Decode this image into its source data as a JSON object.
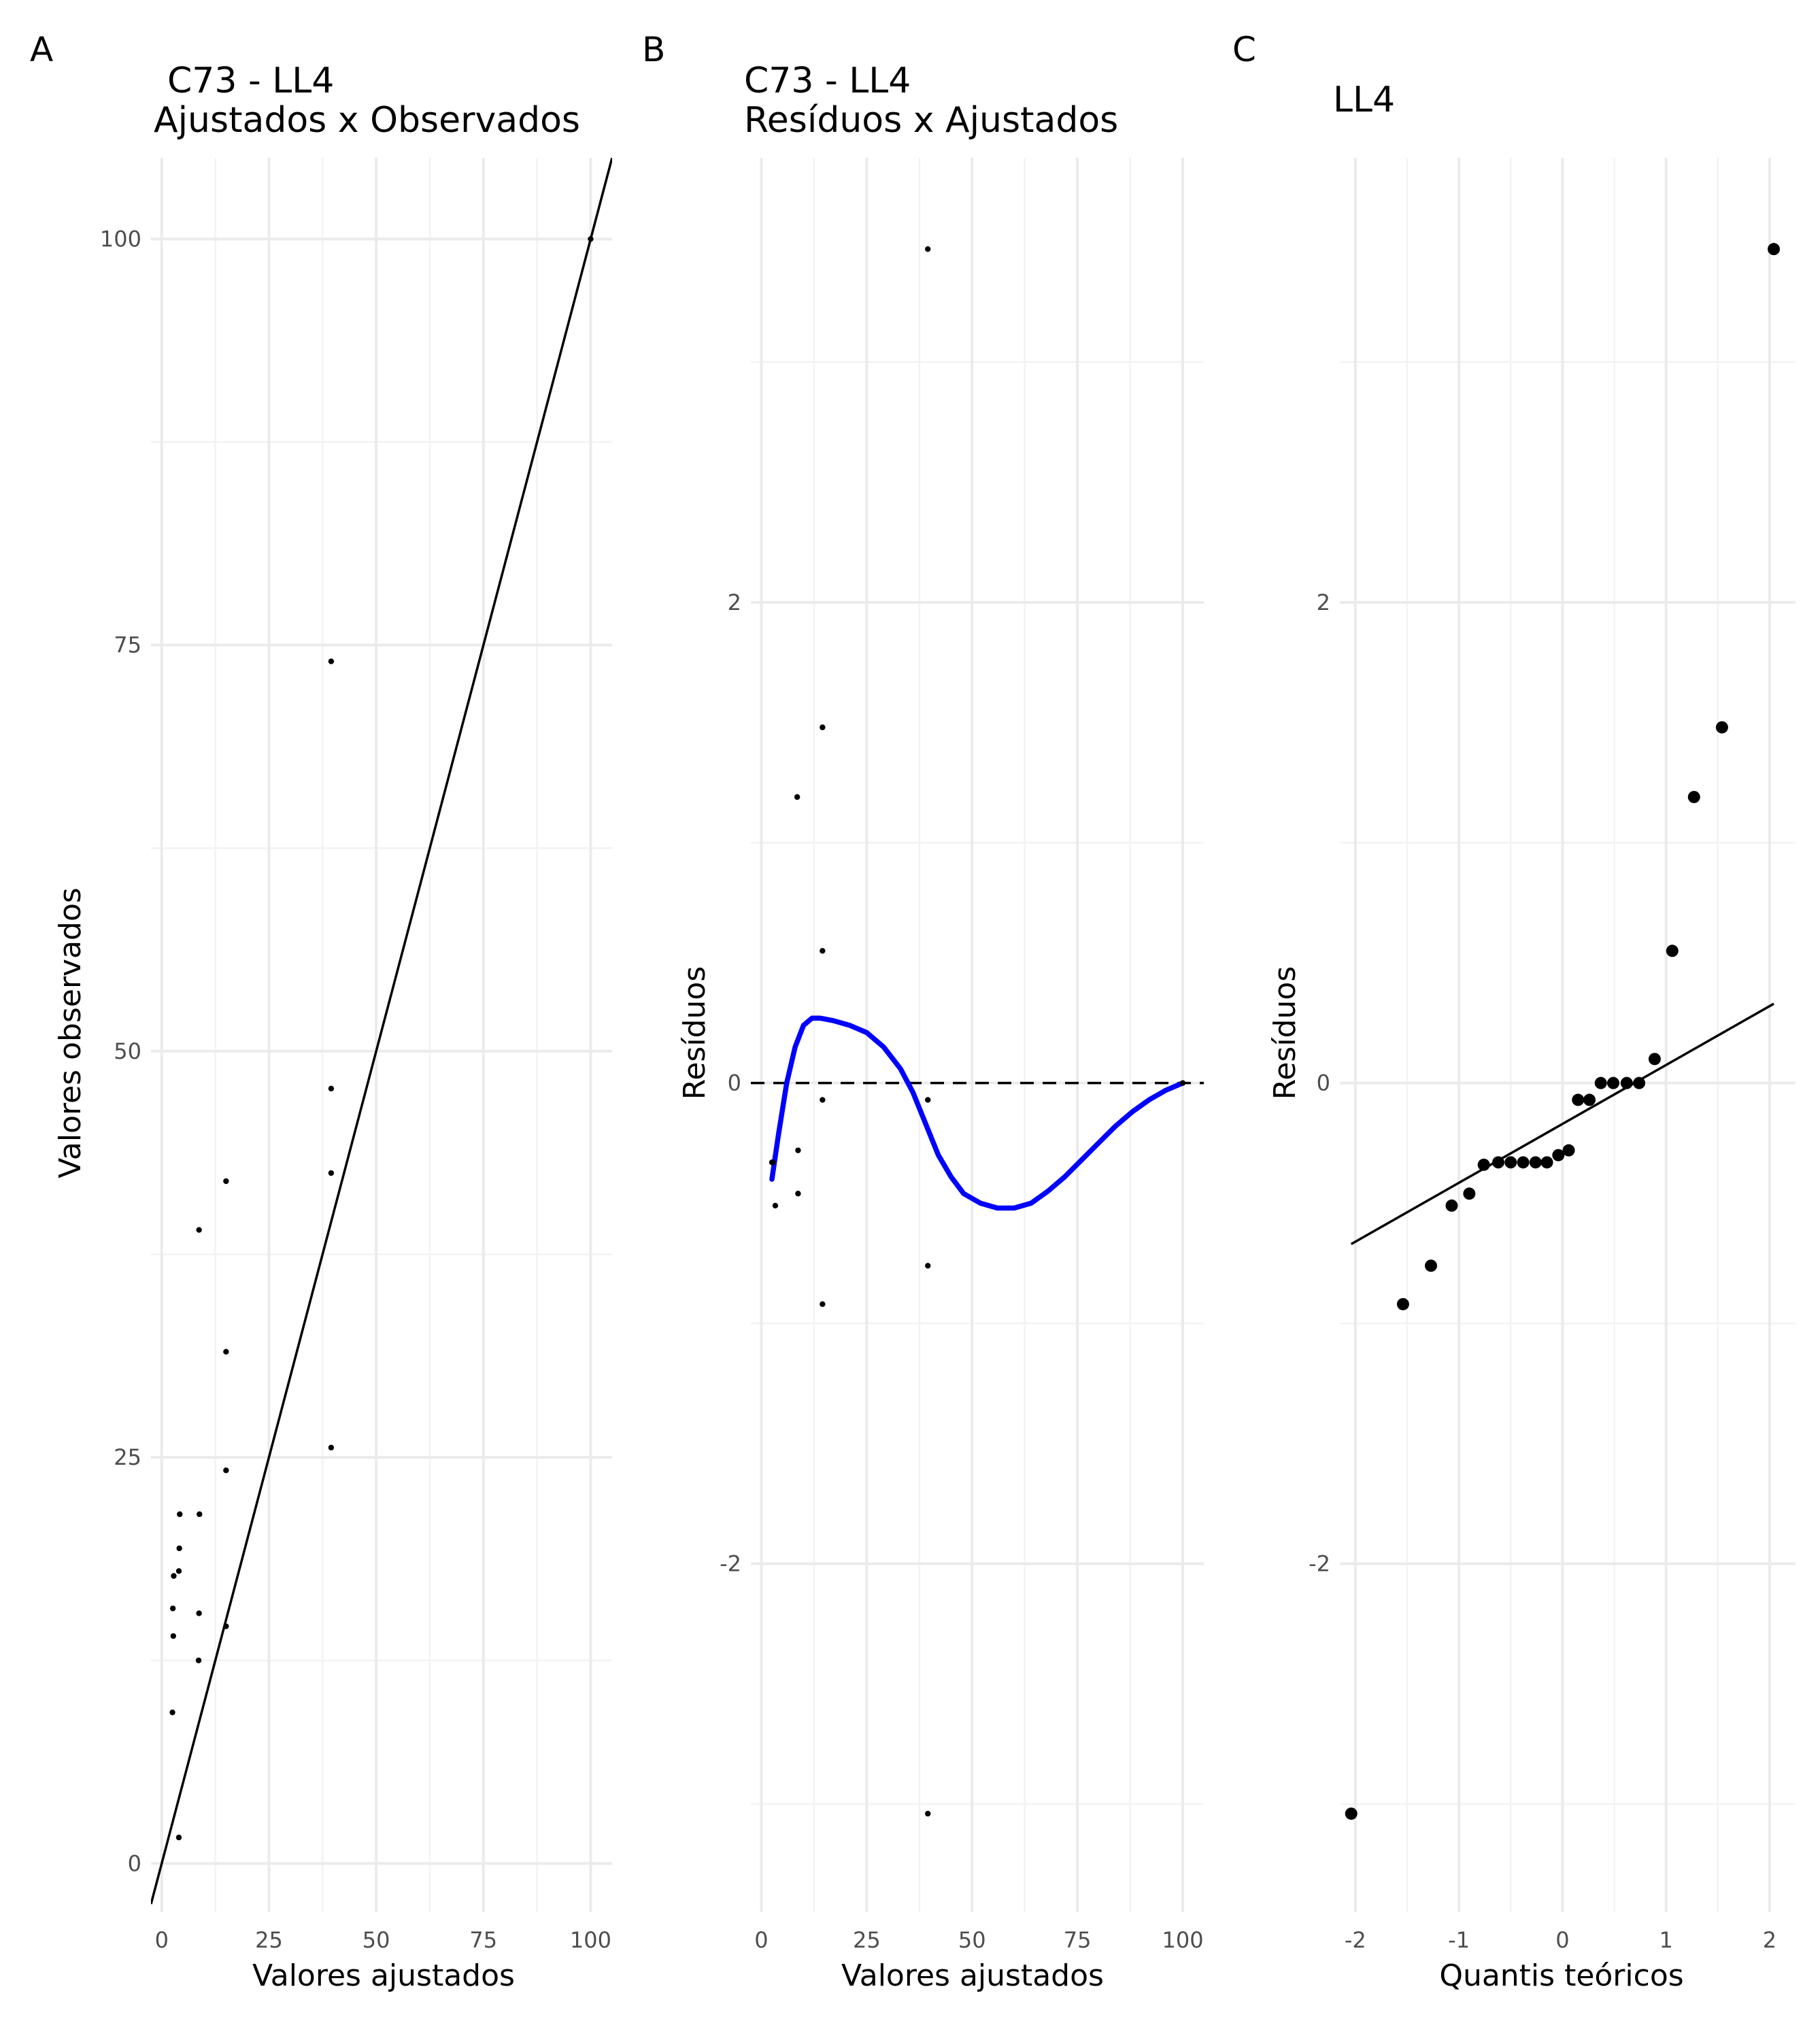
{
  "chart_data": [
    {
      "panel": "A",
      "type": "scatter",
      "title_lines": [
        "C73 - LL4",
        "Ajustados x Observados"
      ],
      "xlabel": "Valores ajustados",
      "ylabel": "Valores observados",
      "xlim": [
        -2.5,
        105
      ],
      "ylim": [
        -3,
        105
      ],
      "xticks": [
        0,
        25,
        50,
        75,
        100
      ],
      "yticks": [
        0,
        25,
        50,
        75,
        100
      ],
      "grid": true,
      "points": [
        {
          "x": 2.5,
          "y": 9.3
        },
        {
          "x": 2.7,
          "y": 14
        },
        {
          "x": 2.6,
          "y": 15.7
        },
        {
          "x": 2.8,
          "y": 17.7
        },
        {
          "x": 4,
          "y": 1.6
        },
        {
          "x": 4,
          "y": 18
        },
        {
          "x": 4.1,
          "y": 19.4
        },
        {
          "x": 4.2,
          "y": 21.5
        },
        {
          "x": 8.6,
          "y": 12.5
        },
        {
          "x": 8.7,
          "y": 15.4
        },
        {
          "x": 8.8,
          "y": 21.5
        },
        {
          "x": 8.7,
          "y": 39
        },
        {
          "x": 15,
          "y": 14.6
        },
        {
          "x": 15,
          "y": 24.2
        },
        {
          "x": 15,
          "y": 31.5
        },
        {
          "x": 15,
          "y": 42
        },
        {
          "x": 39.5,
          "y": 25.6
        },
        {
          "x": 39.5,
          "y": 42.5
        },
        {
          "x": 39.5,
          "y": 47.7
        },
        {
          "x": 39.5,
          "y": 74
        },
        {
          "x": 100,
          "y": 100
        }
      ],
      "reference_line": {
        "slope": 1,
        "intercept": 0
      }
    },
    {
      "panel": "B",
      "type": "scatter",
      "title_lines": [
        "C73 - LL4",
        "Resíduos x Ajustados"
      ],
      "xlabel": "Valores ajustados",
      "ylabel": "Resíduos",
      "xlim": [
        -2.5,
        105
      ],
      "ylim": [
        -3.45,
        3.85
      ],
      "xticks": [
        0,
        25,
        50,
        75,
        100
      ],
      "yticks": [
        -2,
        0,
        2
      ],
      "grid": true,
      "points": [
        {
          "x": 2.5,
          "y": -0.33
        },
        {
          "x": 2.7,
          "y": -0.33
        },
        {
          "x": 3.3,
          "y": -0.51
        },
        {
          "x": 8.5,
          "y": 1.19
        },
        {
          "x": 8.7,
          "y": -0.28
        },
        {
          "x": 8.7,
          "y": -0.46
        },
        {
          "x": 14.5,
          "y": 1.48
        },
        {
          "x": 14.5,
          "y": 0.55
        },
        {
          "x": 14.5,
          "y": -0.07
        },
        {
          "x": 14.5,
          "y": -0.92
        },
        {
          "x": 39.5,
          "y": 3.47
        },
        {
          "x": 39.5,
          "y": -0.07
        },
        {
          "x": 39.5,
          "y": -0.76
        },
        {
          "x": 39.5,
          "y": -3.04
        },
        {
          "x": 100,
          "y": 0
        }
      ],
      "smooth_line": {
        "color": "#0000ff",
        "x": [
          2.5,
          4,
          6,
          8,
          10,
          12,
          14,
          17,
          21,
          25,
          29,
          33,
          36,
          39,
          42,
          45,
          48,
          52,
          56,
          60,
          64,
          68,
          72,
          76,
          80,
          84,
          88,
          92,
          96,
          100
        ],
        "y": [
          -0.4,
          -0.22,
          0,
          0.15,
          0.24,
          0.27,
          0.27,
          0.26,
          0.24,
          0.21,
          0.15,
          0.06,
          -0.04,
          -0.17,
          -0.3,
          -0.39,
          -0.46,
          -0.5,
          -0.52,
          -0.52,
          -0.5,
          -0.45,
          -0.39,
          -0.32,
          -0.25,
          -0.18,
          -0.12,
          -0.07,
          -0.03,
          0
        ]
      },
      "reference_line": {
        "y": 0,
        "style": "dashed"
      }
    },
    {
      "panel": "C",
      "type": "scatter",
      "title_lines": [
        "LL4"
      ],
      "xlabel": "Quantis teóricos",
      "ylabel": "Resíduos",
      "xlim": [
        -2.15,
        2.25
      ],
      "ylim": [
        -3.45,
        3.85
      ],
      "xticks": [
        -2,
        -1,
        0,
        1,
        2
      ],
      "yticks": [
        -2,
        0,
        2
      ],
      "grid": true,
      "points": [
        {
          "x": -2.04,
          "y": -3.04
        },
        {
          "x": -1.54,
          "y": -0.92
        },
        {
          "x": -1.27,
          "y": -0.76
        },
        {
          "x": -1.07,
          "y": -0.51
        },
        {
          "x": -0.9,
          "y": -0.46
        },
        {
          "x": -0.76,
          "y": -0.34
        },
        {
          "x": -0.62,
          "y": -0.33
        },
        {
          "x": -0.5,
          "y": -0.33
        },
        {
          "x": -0.38,
          "y": -0.33
        },
        {
          "x": -0.26,
          "y": -0.33
        },
        {
          "x": -0.15,
          "y": -0.33
        },
        {
          "x": -0.04,
          "y": -0.3
        },
        {
          "x": 0.06,
          "y": -0.28
        },
        {
          "x": 0.15,
          "y": -0.07
        },
        {
          "x": 0.26,
          "y": -0.07
        },
        {
          "x": 0.37,
          "y": 0
        },
        {
          "x": 0.49,
          "y": 0
        },
        {
          "x": 0.62,
          "y": 0
        },
        {
          "x": 0.74,
          "y": 0
        },
        {
          "x": 0.89,
          "y": 0.1
        },
        {
          "x": 1.06,
          "y": 0.55
        },
        {
          "x": 1.27,
          "y": 1.19
        },
        {
          "x": 1.54,
          "y": 1.48
        },
        {
          "x": 2.04,
          "y": 3.47
        }
      ],
      "reference_line": {
        "x": [
          -2.04,
          2.04
        ],
        "y": [
          -0.67,
          0.33
        ]
      }
    }
  ],
  "panel_letters": [
    "A",
    "B",
    "C"
  ],
  "point_color": "#000000",
  "line_color": "#000000",
  "grid_color": "#ebebeb"
}
